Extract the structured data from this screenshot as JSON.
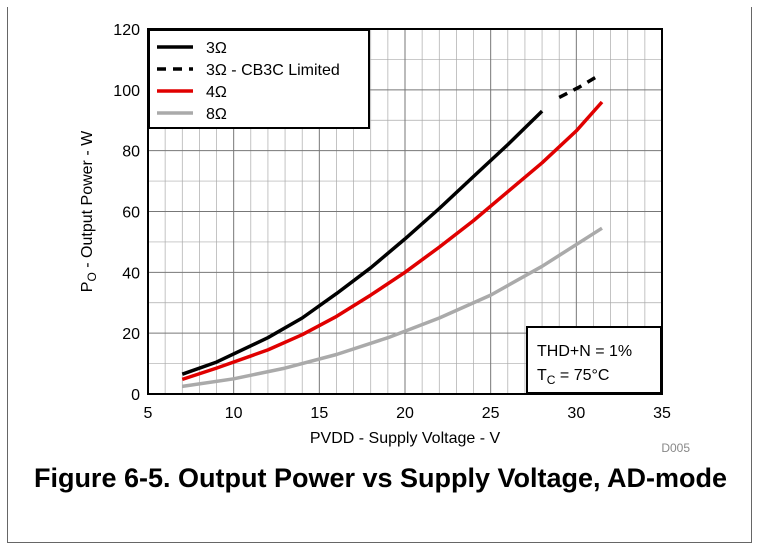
{
  "figure": {
    "caption": "Figure 6-5. Output Power vs Supply Voltage, AD-mode",
    "code": "D005"
  },
  "chart_data": {
    "type": "line",
    "xlabel": "PVDD - Supply Voltage - V",
    "ylabel": "P",
    "ylabel_sub": "O",
    "ylabel_rest": " - Output Power - W",
    "xlim": [
      5,
      35
    ],
    "ylim": [
      0,
      120
    ],
    "x_ticks": [
      5,
      10,
      15,
      20,
      25,
      30,
      35
    ],
    "y_ticks": [
      0,
      20,
      40,
      60,
      80,
      100,
      120
    ],
    "x_minor_step": 1,
    "y_minor_step": 10,
    "grid": true,
    "legend_position": "top-left",
    "series": [
      {
        "name": "3Ω",
        "color": "#000000",
        "dash": "solid",
        "x": [
          7,
          9,
          12,
          14,
          16,
          18,
          20,
          22,
          24,
          26,
          28
        ],
        "y": [
          6.5,
          10.5,
          18.5,
          25,
          33,
          41.5,
          51,
          61,
          71.5,
          82,
          93
        ]
      },
      {
        "name": "3Ω - CB3C Limited",
        "color": "#000000",
        "dash": "dotted",
        "x": [
          29,
          30.2,
          31.4
        ],
        "y": [
          97.5,
          101,
          105
        ]
      },
      {
        "name": "4Ω",
        "color": "#e00000",
        "dash": "solid",
        "x": [
          7,
          9,
          12,
          14,
          16,
          18,
          20,
          22,
          24,
          26,
          28,
          30,
          31.5
        ],
        "y": [
          4.8,
          8.5,
          14.5,
          19.5,
          25.5,
          32.5,
          40,
          48.3,
          57,
          66.5,
          76,
          86.5,
          96
        ]
      },
      {
        "name": "8Ω",
        "color": "#aaaaaa",
        "dash": "solid",
        "x": [
          7,
          10,
          13,
          16,
          19,
          22,
          25,
          28,
          31.5
        ],
        "y": [
          2.5,
          5,
          8.5,
          13,
          18.5,
          25,
          32.5,
          42,
          54.5
        ]
      }
    ],
    "annotation": {
      "line1": "THD+N = 1%",
      "line2_prefix": "T",
      "line2_sub": "C",
      "line2_rest": " = 75°C"
    }
  }
}
